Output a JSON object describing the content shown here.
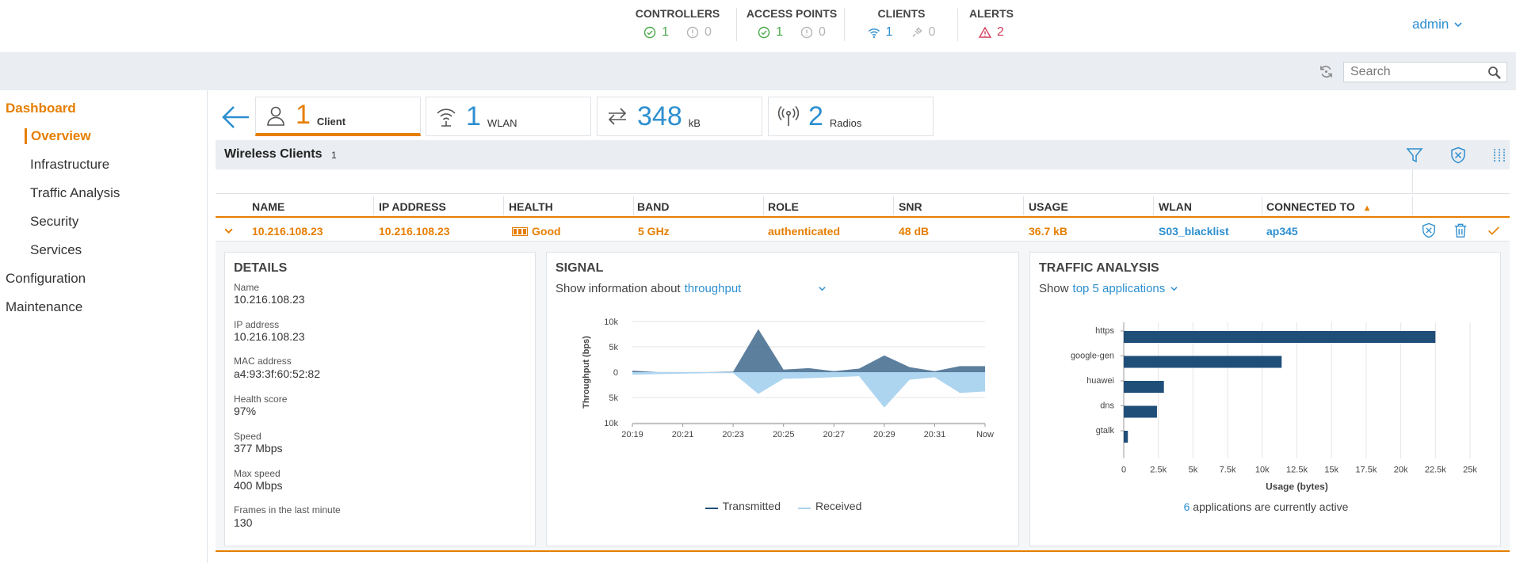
{
  "topbar": {
    "controllers": {
      "title": "CONTROLLERS",
      "up": "1",
      "down": "0"
    },
    "access_points": {
      "title": "ACCESS POINTS",
      "up": "1",
      "down": "0"
    },
    "clients": {
      "title": "CLIENTS",
      "wireless": "1",
      "wired": "0"
    },
    "alerts": {
      "title": "ALERTS",
      "count": "2"
    },
    "user": "admin"
  },
  "search": {
    "placeholder": "Search"
  },
  "sidebar": {
    "dashboard": "Dashboard",
    "items": [
      "Overview",
      "Infrastructure",
      "Traffic Analysis",
      "Security",
      "Services"
    ],
    "configuration": "Configuration",
    "maintenance": "Maintenance"
  },
  "summary_tabs": [
    {
      "count": "1",
      "label": "Client"
    },
    {
      "count": "1",
      "label": "WLAN"
    },
    {
      "count": "348",
      "label": "kB"
    },
    {
      "count": "2",
      "label": "Radios"
    }
  ],
  "wireless_clients": {
    "title": "Wireless Clients",
    "count": "1",
    "sort_indicator": "▲",
    "columns": [
      "NAME",
      "IP ADDRESS",
      "HEALTH",
      "BAND",
      "ROLE",
      "SNR",
      "USAGE",
      "WLAN",
      "CONNECTED TO"
    ],
    "row": {
      "name": "10.216.108.23",
      "ip": "10.216.108.23",
      "health": "Good",
      "band": "5 GHz",
      "role": "authenticated",
      "snr": "48 dB",
      "usage": "36.7 kB",
      "wlan": "S03_blacklist",
      "connected_to": "ap345"
    }
  },
  "details": {
    "title": "DETAILS",
    "fields": [
      {
        "label": "Name",
        "value": "10.216.108.23"
      },
      {
        "label": "IP address",
        "value": "10.216.108.23"
      },
      {
        "label": "MAC address",
        "value": "a4:93:3f:60:52:82"
      },
      {
        "label": "Health score",
        "value": "97%"
      },
      {
        "label": "Speed",
        "value": "377 Mbps"
      },
      {
        "label": "Max speed",
        "value": "400 Mbps"
      },
      {
        "label": "Frames in the last minute",
        "value": "130"
      }
    ]
  },
  "signal": {
    "title": "SIGNAL",
    "show_prefix": "Show information about",
    "show_value": "throughput"
  },
  "traffic": {
    "title": "TRAFFIC ANALYSIS",
    "show_prefix": "Show",
    "show_value": "top 5 applications",
    "footer_count": "6",
    "footer_text": "applications are currently active"
  },
  "colors": {
    "accent": "#e67e00",
    "link": "#2d8fd0",
    "transmitted": "#1f4e79",
    "received": "#a9d3ef"
  },
  "chart_data": [
    {
      "type": "area",
      "title": "",
      "ylabel": "Throughput (bps)",
      "xlabel": "",
      "x": [
        "20:19",
        "",
        "20:21",
        "",
        "20:23",
        "",
        "20:25",
        "",
        "20:27",
        "",
        "20:29",
        "",
        "20:31",
        "",
        "Now"
      ],
      "x_ticks": [
        "20:19",
        "20:21",
        "20:23",
        "20:25",
        "20:27",
        "20:29",
        "20:31",
        "Now"
      ],
      "y_ticks": [
        "10k",
        "5k",
        "0",
        "5k",
        "10k"
      ],
      "ylim": [
        -10000,
        10000
      ],
      "series": [
        {
          "name": "Transmitted",
          "values": [
            300,
            0,
            0,
            0,
            100,
            8500,
            500,
            800,
            200,
            700,
            3300,
            1000,
            200,
            1200,
            1200
          ]
        },
        {
          "name": "Received",
          "values": [
            -500,
            -400,
            -300,
            -200,
            -200,
            -4300,
            -1300,
            -1200,
            -1000,
            -800,
            -7000,
            -1500,
            -1000,
            -4100,
            -3800
          ]
        }
      ],
      "legend_position": "bottom"
    },
    {
      "type": "bar",
      "orientation": "horizontal",
      "title": "",
      "xlabel": "Usage (bytes)",
      "ylabel": "",
      "categories": [
        "https",
        "google-gen",
        "huawei",
        "dns",
        "gtalk"
      ],
      "values": [
        22500,
        11400,
        2900,
        2400,
        300
      ],
      "x_ticks": [
        "0",
        "2.5k",
        "5k",
        "7.5k",
        "10k",
        "12.5k",
        "15k",
        "17.5k",
        "20k",
        "22.5k",
        "25k"
      ],
      "xlim": [
        0,
        25000
      ],
      "grid": true
    }
  ]
}
